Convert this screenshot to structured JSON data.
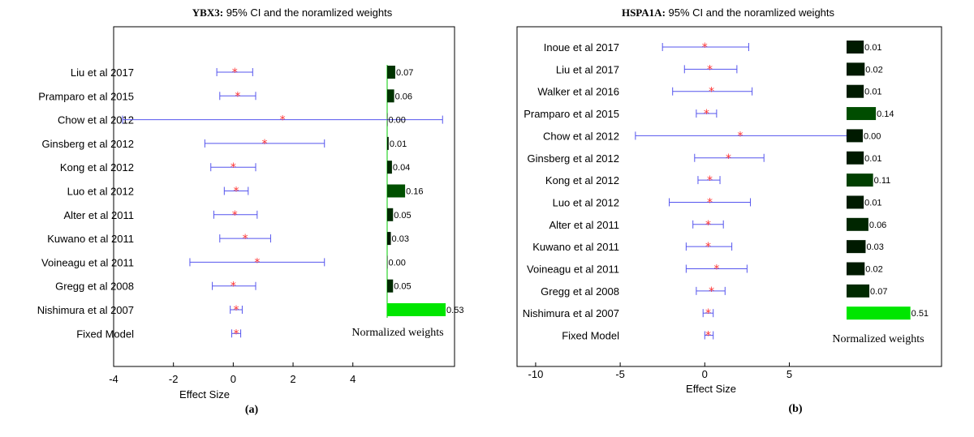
{
  "chart_data": [
    {
      "type": "forest",
      "title_bold": "YBX3:",
      "title_rest": " 95% CI and the noramlized weights",
      "xlabel": "Effect Size",
      "panel_label": "(a)",
      "weights_label": "Normalized weights",
      "xlim": [
        -4,
        7.4
      ],
      "xticks": [
        -4,
        -2,
        0,
        2,
        4
      ],
      "xtick_labels": [
        "-4",
        "-2",
        "0",
        "2",
        "4"
      ],
      "studies": [
        {
          "name": "Liu et al 2017",
          "est": 0.05,
          "lo": -0.55,
          "hi": 0.65,
          "weight": 0.07,
          "weight_label": "0.07",
          "color": "#003300"
        },
        {
          "name": "Pramparo et al 2015",
          "est": 0.15,
          "lo": -0.45,
          "hi": 0.75,
          "weight": 0.06,
          "weight_label": "0.06",
          "color": "#003300"
        },
        {
          "name": "Chow et al 2012",
          "est": 1.65,
          "lo": -3.7,
          "hi": 7.0,
          "weight": 0.0,
          "weight_label": "0.00",
          "color": "#001a00"
        },
        {
          "name": "Ginsberg et al 2012",
          "est": 1.05,
          "lo": -0.95,
          "hi": 3.05,
          "weight": 0.01,
          "weight_label": "0.01",
          "color": "#001a00"
        },
        {
          "name": "Kong  et al 2012",
          "est": 0.0,
          "lo": -0.75,
          "hi": 0.75,
          "weight": 0.04,
          "weight_label": "0.04",
          "color": "#002a00"
        },
        {
          "name": "Luo et al 2012",
          "est": 0.1,
          "lo": -0.3,
          "hi": 0.5,
          "weight": 0.16,
          "weight_label": "0.16",
          "color": "#005000"
        },
        {
          "name": "Alter et al 2011",
          "est": 0.05,
          "lo": -0.65,
          "hi": 0.8,
          "weight": 0.05,
          "weight_label": "0.05",
          "color": "#002a00"
        },
        {
          "name": "Kuwano  et al 2011",
          "est": 0.4,
          "lo": -0.45,
          "hi": 1.25,
          "weight": 0.03,
          "weight_label": "0.03",
          "color": "#001a00"
        },
        {
          "name": "Voineagu  et al 2011",
          "est": 0.8,
          "lo": -1.45,
          "hi": 3.05,
          "weight": 0.0,
          "weight_label": "0.00",
          "color": "#001a00"
        },
        {
          "name": "Gregg et al 2008",
          "est": 0.0,
          "lo": -0.7,
          "hi": 0.75,
          "weight": 0.05,
          "weight_label": "0.05",
          "color": "#002a00"
        },
        {
          "name": "Nishimura et al 2007",
          "est": 0.1,
          "lo": -0.1,
          "hi": 0.3,
          "weight": 0.53,
          "weight_label": "0.53",
          "color": "#00e600"
        },
        {
          "name": "Fixed Model",
          "est": 0.1,
          "lo": -0.05,
          "hi": 0.25,
          "weight": null,
          "weight_label": "",
          "color": ""
        }
      ]
    },
    {
      "type": "forest",
      "title_bold": "HSPA1A:",
      "title_rest": " 95% CI and the noramlized weights",
      "xlabel": "Effect Size",
      "panel_label": "(b)",
      "weights_label": "Normalized weights",
      "xlim": [
        -11.1,
        14.0
      ],
      "xticks": [
        -10,
        -5,
        0,
        5
      ],
      "xtick_labels": [
        "-10",
        "-5",
        "0",
        "5"
      ],
      "studies": [
        {
          "name": "Inoue et al 2017",
          "est": 0.0,
          "lo": -2.5,
          "hi": 2.6,
          "weight": 0.01,
          "weight_label": "0.01",
          "color": "#001a00"
        },
        {
          "name": "Liu et al 2017",
          "est": 0.3,
          "lo": -1.2,
          "hi": 1.9,
          "weight": 0.02,
          "weight_label": "0.02",
          "color": "#001a00"
        },
        {
          "name": "Walker et al 2016",
          "est": 0.4,
          "lo": -1.9,
          "hi": 2.8,
          "weight": 0.01,
          "weight_label": "0.01",
          "color": "#001a00"
        },
        {
          "name": "Pramparo et al 2015",
          "est": 0.1,
          "lo": -0.5,
          "hi": 0.7,
          "weight": 0.14,
          "weight_label": "0.14",
          "color": "#004d00"
        },
        {
          "name": "Chow et al 2012",
          "est": 2.1,
          "lo": -4.1,
          "hi": 8.4,
          "weight": 0.0,
          "weight_label": "0.00",
          "color": "#001a00"
        },
        {
          "name": "Ginsberg et al 2012",
          "est": 1.4,
          "lo": -0.6,
          "hi": 3.5,
          "weight": 0.01,
          "weight_label": "0.01",
          "color": "#001a00"
        },
        {
          "name": "Kong  et al 2012",
          "est": 0.3,
          "lo": -0.4,
          "hi": 0.9,
          "weight": 0.11,
          "weight_label": "0.11",
          "color": "#003f00"
        },
        {
          "name": "Luo et al 2012",
          "est": 0.3,
          "lo": -2.1,
          "hi": 2.7,
          "weight": 0.01,
          "weight_label": "0.01",
          "color": "#001a00"
        },
        {
          "name": "Alter et al 2011",
          "est": 0.2,
          "lo": -0.7,
          "hi": 1.1,
          "weight": 0.06,
          "weight_label": "0.06",
          "color": "#002600"
        },
        {
          "name": "Kuwano  et al 2011",
          "est": 0.2,
          "lo": -1.1,
          "hi": 1.6,
          "weight": 0.03,
          "weight_label": "0.03",
          "color": "#001a00"
        },
        {
          "name": "Voineagu  et al 2011",
          "est": 0.7,
          "lo": -1.1,
          "hi": 2.5,
          "weight": 0.02,
          "weight_label": "0.02",
          "color": "#001a00"
        },
        {
          "name": "Gregg et al 2008",
          "est": 0.4,
          "lo": -0.5,
          "hi": 1.2,
          "weight": 0.07,
          "weight_label": "0.07",
          "color": "#002a00"
        },
        {
          "name": "Nishimura et al 2007",
          "est": 0.2,
          "lo": -0.1,
          "hi": 0.5,
          "weight": 0.51,
          "weight_label": "0.51",
          "color": "#00e600"
        },
        {
          "name": "Fixed Model",
          "est": 0.2,
          "lo": 0.0,
          "hi": 0.5,
          "weight": null,
          "weight_label": "",
          "color": ""
        }
      ]
    }
  ]
}
